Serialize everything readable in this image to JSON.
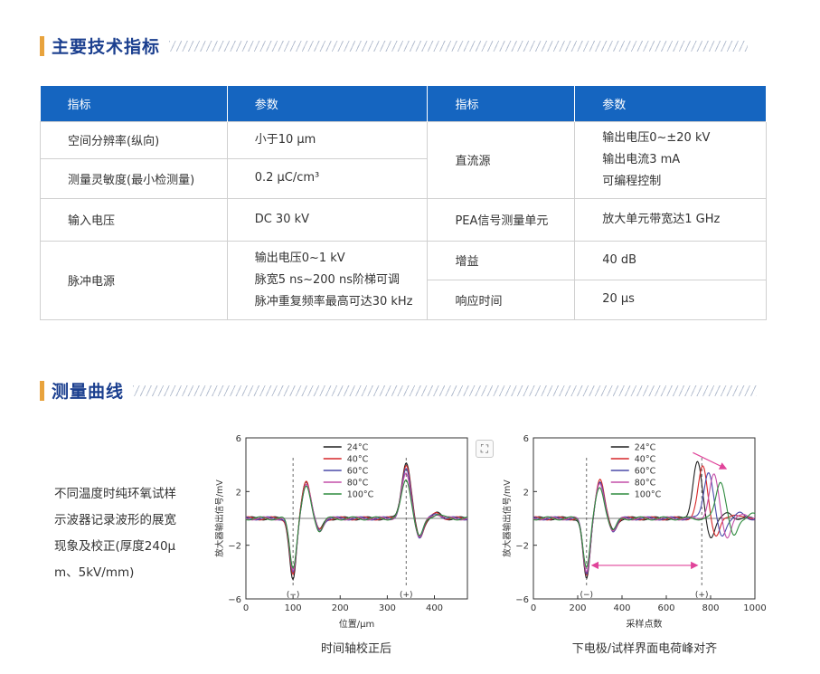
{
  "section1": {
    "title": "主要技术指标"
  },
  "section2": {
    "title": "测量曲线"
  },
  "table": {
    "headers": [
      "指标",
      "参数",
      "指标",
      "参数"
    ],
    "left_rows": [
      {
        "label": "空间分辨率(纵向)",
        "value": [
          "小于10 μm"
        ]
      },
      {
        "label": "测量灵敏度(最小检测量)",
        "value": [
          "0.2 μC/cm³"
        ]
      },
      {
        "label": "输入电压",
        "value": [
          "DC  30 kV"
        ]
      },
      {
        "label": "脉冲电源",
        "value": [
          "输出电压0~1 kV",
          "脉宽5 ns~200 ns阶梯可调",
          "脉冲重复频率最高可达30 kHz"
        ]
      }
    ],
    "right_rows": [
      {
        "label": "直流源",
        "value": [
          "输出电压0~±20 kV",
          "输出电流3 mA",
          "可编程控制"
        ]
      },
      {
        "label": "PEA信号测量单元",
        "value": [
          "放大单元带宽达1 GHz"
        ]
      },
      {
        "label": "增益",
        "value": [
          "40 dB"
        ]
      },
      {
        "label": "响应时间",
        "value": [
          "20 μs"
        ]
      }
    ]
  },
  "description": {
    "lines": [
      "不同温度时纯环氧试样",
      "示波器记录波形的展宽",
      "现象及校正(厚度240μ",
      "m、5kV/mm)"
    ]
  },
  "icons": {
    "fullscreen": "fullscreen-icon",
    "fullscreen_glyph": "⛶"
  },
  "chart_data": [
    {
      "type": "line",
      "title": "",
      "caption": "时间轴校正后",
      "xlabel": "位置/μm",
      "ylabel": "放大器输出信号/mV",
      "xlim": [
        0,
        470
      ],
      "ylim": [
        -6,
        6
      ],
      "xticks": [
        0,
        100,
        200,
        300,
        400
      ],
      "yticks": [
        -6,
        -2,
        2,
        6
      ],
      "markers": [
        {
          "x": 100,
          "label": "(−)"
        },
        {
          "x": 340,
          "label": "(+)"
        }
      ],
      "legend_position": "top-center",
      "series": [
        {
          "name": "24°C",
          "color": "#222222",
          "peaks": [
            [
              100,
              -4.6
            ],
            [
              128,
              2.8
            ],
            [
              340,
              4.2
            ]
          ]
        },
        {
          "name": "40°C",
          "color": "#d62728",
          "peaks": [
            [
              100,
              -4.3
            ],
            [
              128,
              2.9
            ],
            [
              340,
              3.9
            ]
          ]
        },
        {
          "name": "60°C",
          "color": "#4a4aa8",
          "peaks": [
            [
              100,
              -4.1
            ],
            [
              128,
              2.6
            ],
            [
              340,
              3.6
            ]
          ]
        },
        {
          "name": "80°C",
          "color": "#c44fa8",
          "peaks": [
            [
              100,
              -3.9
            ],
            [
              128,
              2.5
            ],
            [
              340,
              3.3
            ]
          ]
        },
        {
          "name": "100°C",
          "color": "#2e8b3e",
          "peaks": [
            [
              100,
              -3.6
            ],
            [
              128,
              2.3
            ],
            [
              340,
              2.9
            ]
          ]
        }
      ]
    },
    {
      "type": "line",
      "title": "",
      "caption": "下电极/试样界面电荷峰对齐",
      "xlabel": "采样点数",
      "ylabel": "放大器输出信号/mV",
      "xlim": [
        0,
        1000
      ],
      "ylim": [
        -6,
        6
      ],
      "xticks": [
        0,
        200,
        400,
        600,
        800,
        1000
      ],
      "yticks": [
        -6,
        -2,
        2,
        6
      ],
      "markers": [
        {
          "x": 240,
          "label": "(−)"
        },
        {
          "x": 760,
          "label": "(+)"
        }
      ],
      "legend_position": "top-center",
      "series": [
        {
          "name": "24°C",
          "color": "#222222",
          "peaks": [
            [
              240,
              -4.6
            ],
            [
              300,
              2.8
            ],
            [
              740,
              4.2
            ]
          ]
        },
        {
          "name": "40°C",
          "color": "#d62728",
          "peaks": [
            [
              240,
              -4.3
            ],
            [
              300,
              2.9
            ],
            [
              765,
              3.9
            ]
          ]
        },
        {
          "name": "60°C",
          "color": "#4a4aa8",
          "peaks": [
            [
              240,
              -4.1
            ],
            [
              300,
              2.6
            ],
            [
              790,
              3.5
            ]
          ]
        },
        {
          "name": "80°C",
          "color": "#c44fa8",
          "peaks": [
            [
              240,
              -3.9
            ],
            [
              300,
              2.5
            ],
            [
              815,
              3.2
            ]
          ]
        },
        {
          "name": "100°C",
          "color": "#2e8b3e",
          "peaks": [
            [
              240,
              -3.6
            ],
            [
              300,
              2.3
            ],
            [
              845,
              2.8
            ]
          ]
        }
      ]
    }
  ]
}
